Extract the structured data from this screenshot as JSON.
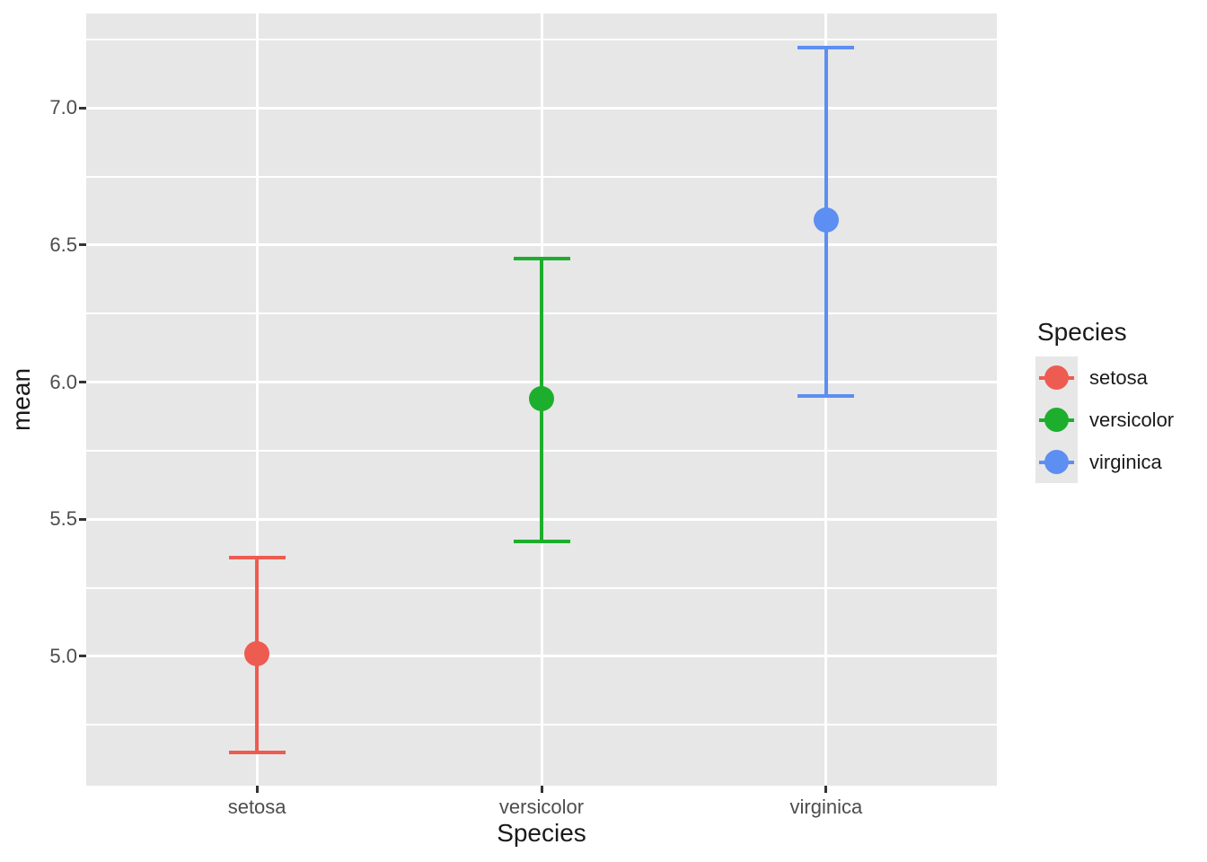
{
  "chart_data": {
    "type": "pointrange",
    "title": "",
    "xlabel": "Species",
    "ylabel": "mean",
    "categories": [
      "setosa",
      "versicolor",
      "virginica"
    ],
    "points": [
      {
        "species": "setosa",
        "mean": 5.01,
        "ymin": 4.65,
        "ymax": 5.36,
        "color": "#EE5B51"
      },
      {
        "species": "versicolor",
        "mean": 5.94,
        "ymin": 5.42,
        "ymax": 6.45,
        "color": "#1EAE2D"
      },
      {
        "species": "virginica",
        "mean": 6.59,
        "ymin": 5.95,
        "ymax": 7.22,
        "color": "#5D8EF1"
      }
    ],
    "y_tick_labels": [
      "5.0",
      "5.5",
      "6.0",
      "6.5",
      "7.0"
    ],
    "y_major_ticks": [
      5.0,
      5.5,
      6.0,
      6.5,
      7.0
    ],
    "y_minor_ticks": [
      4.75,
      5.25,
      5.75,
      6.25,
      6.75,
      7.25
    ],
    "ylim": [
      4.528,
      7.345
    ],
    "grid": true,
    "panel_bg": "#E7E7E7",
    "grid_color": "#FFFFFF",
    "tick_label_color": "#4D4D4D",
    "legend": {
      "position": "right",
      "title": "Species",
      "entries": [
        "setosa",
        "versicolor",
        "virginica"
      ]
    }
  }
}
